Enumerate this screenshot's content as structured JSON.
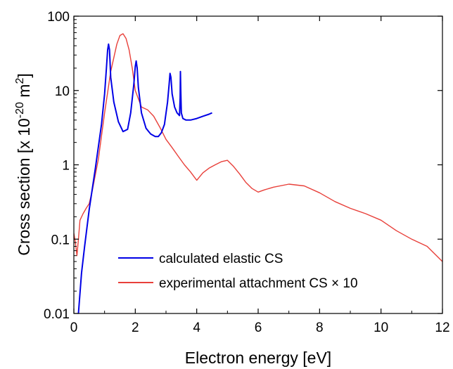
{
  "chart_data": {
    "type": "line",
    "xlabel": "Electron energy [eV]",
    "ylabel": {
      "main": "Cross section [x 10",
      "exp": "-20",
      "mid": " m",
      "exp2": "2",
      "end": "]"
    },
    "xlim": [
      0,
      12
    ],
    "ylim": [
      0.01,
      100
    ],
    "yscale": "log",
    "x_ticks": [
      0,
      2,
      4,
      6,
      8,
      10,
      12
    ],
    "x_tick_labels": [
      "0",
      "2",
      "4",
      "6",
      "8",
      "10",
      "12"
    ],
    "y_ticks": [
      0.01,
      0.1,
      1,
      10,
      100
    ],
    "y_tick_labels": [
      "0.01",
      "0.1",
      "1",
      "10",
      "100"
    ],
    "legend_position": "bottom-center",
    "legend": [
      {
        "label": "calculated elastic CS",
        "color": "#0000e6"
      },
      {
        "label": "experimental attachment CS × 10",
        "color": "#e8403a"
      }
    ],
    "series": [
      {
        "name": "calculated elastic CS",
        "color": "#0000e6",
        "x": [
          0.15,
          0.25,
          0.35,
          0.5,
          0.7,
          0.9,
          1.0,
          1.06,
          1.1,
          1.13,
          1.16,
          1.2,
          1.3,
          1.45,
          1.6,
          1.75,
          1.85,
          1.95,
          2.0,
          2.03,
          2.06,
          2.1,
          2.2,
          2.35,
          2.5,
          2.65,
          2.75,
          2.85,
          2.95,
          3.05,
          3.1,
          3.13,
          3.16,
          3.2,
          3.28,
          3.36,
          3.44,
          3.46,
          3.47,
          3.48,
          3.5,
          3.55,
          3.65,
          3.8,
          4.0,
          4.2,
          4.4,
          4.5
        ],
        "y": [
          0.01,
          0.035,
          0.08,
          0.25,
          0.9,
          3.5,
          9.0,
          20,
          35,
          42,
          35,
          15,
          7.0,
          3.8,
          2.8,
          3.0,
          5.0,
          12,
          21,
          25,
          20,
          11,
          5.0,
          3.1,
          2.6,
          2.4,
          2.4,
          2.7,
          3.5,
          7.0,
          12,
          17,
          15,
          9.0,
          6.0,
          5.0,
          4.6,
          8.0,
          18,
          10,
          5.0,
          4.2,
          4.0,
          4.0,
          4.2,
          4.5,
          4.8,
          5.0
        ]
      },
      {
        "name": "experimental attachment CS × 10",
        "color": "#e8403a",
        "x": [
          0.0,
          0.05,
          0.1,
          0.15,
          0.2,
          0.3,
          0.4,
          0.5,
          0.6,
          0.8,
          1.0,
          1.2,
          1.4,
          1.5,
          1.6,
          1.7,
          1.8,
          1.9,
          2.0,
          2.2,
          2.4,
          2.6,
          2.8,
          3.0,
          3.2,
          3.4,
          3.6,
          3.8,
          4.0,
          4.2,
          4.4,
          4.6,
          4.8,
          5.0,
          5.2,
          5.4,
          5.6,
          5.8,
          6.0,
          6.2,
          6.5,
          7.0,
          7.5,
          8.0,
          8.5,
          9.0,
          9.5,
          10.0,
          10.5,
          11.0,
          11.5,
          12.0
        ],
        "y": [
          0.12,
          0.09,
          0.06,
          0.1,
          0.18,
          0.22,
          0.26,
          0.3,
          0.45,
          1.2,
          5.0,
          18,
          42,
          55,
          58,
          50,
          35,
          20,
          10,
          6.0,
          5.5,
          4.5,
          3.2,
          2.2,
          1.7,
          1.3,
          1.0,
          0.8,
          0.62,
          0.78,
          0.9,
          1.0,
          1.1,
          1.15,
          0.95,
          0.75,
          0.58,
          0.48,
          0.43,
          0.46,
          0.5,
          0.55,
          0.52,
          0.42,
          0.32,
          0.26,
          0.22,
          0.18,
          0.13,
          0.1,
          0.08,
          0.05
        ]
      }
    ]
  }
}
